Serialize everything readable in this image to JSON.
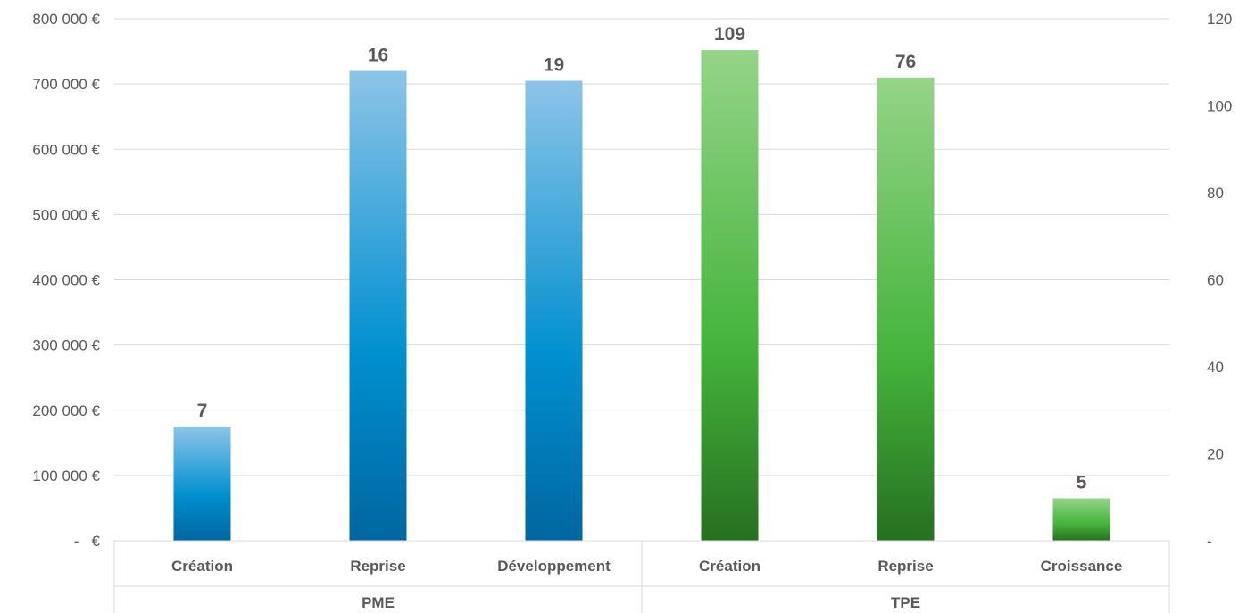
{
  "colors": {
    "pme_top": "#8dc4e8",
    "pme_mid": "#0090d0",
    "pme_bottom": "#0066a0",
    "tpe_top": "#95d488",
    "tpe_mid": "#45b43c",
    "tpe_bottom": "#267020",
    "grid": "#d9d9d9",
    "text": "#595959"
  },
  "chart_data": {
    "type": "bar",
    "groups": [
      {
        "name": "PME",
        "categories": [
          "Création",
          "Reprise",
          "Développement"
        ]
      },
      {
        "name": "TPE",
        "categories": [
          "Création",
          "Reprise",
          "Croissance"
        ]
      }
    ],
    "categories": [
      "Création",
      "Reprise",
      "Développement",
      "Création",
      "Reprise",
      "Croissance"
    ],
    "values": [
      175000,
      720000,
      705000,
      752000,
      710000,
      65000
    ],
    "data_labels": [
      "7",
      "16",
      "19",
      "109",
      "76",
      "5"
    ],
    "ylim": [
      0,
      800000
    ],
    "yticks": [
      0,
      100000,
      200000,
      300000,
      400000,
      500000,
      600000,
      700000,
      800000
    ],
    "ytick_labels": [
      "-   €",
      "100 000 €",
      "200 000 €",
      "300 000 €",
      "400 000 €",
      "500 000 €",
      "600 000 €",
      "700 000 €",
      "800 000 €"
    ],
    "y2lim": [
      0,
      120
    ],
    "y2ticks": [
      0,
      20,
      40,
      60,
      80,
      100,
      120
    ],
    "y2tick_labels": [
      "-",
      "20",
      "40",
      "60",
      "80",
      "100",
      "120"
    ],
    "grid": true,
    "legend": "none"
  }
}
